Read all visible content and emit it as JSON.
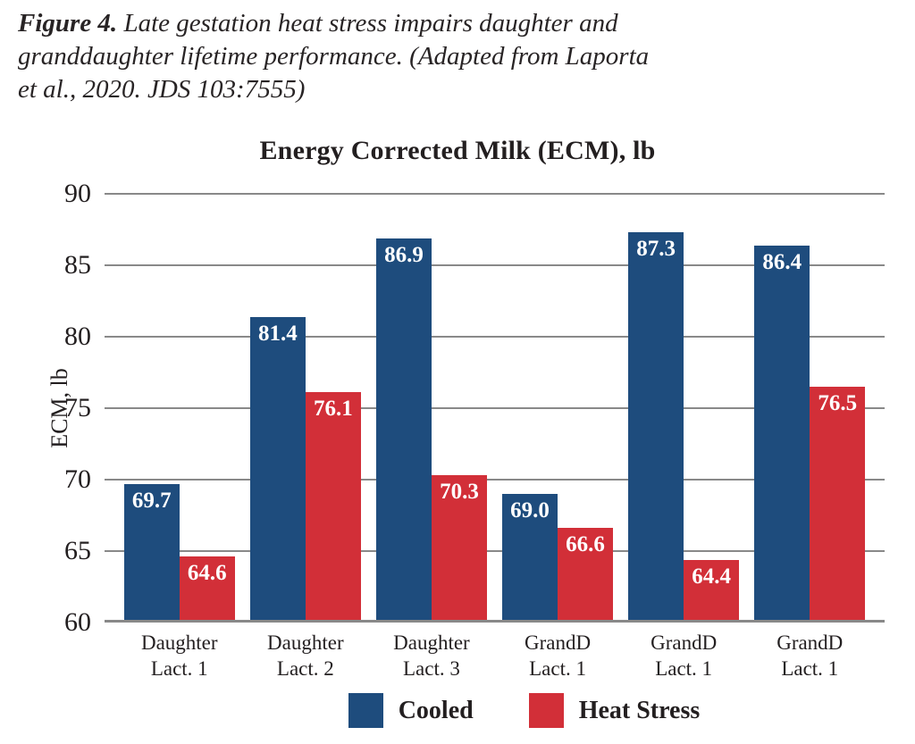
{
  "caption": {
    "label": "Figure 4.",
    "lines": [
      "Late gestation heat stress impairs daughter and",
      "granddaughter lifetime performance. (Adapted from Laporta",
      "et al., 2020. JDS 103:7555)"
    ]
  },
  "chart_data": {
    "type": "bar",
    "title": "Energy Corrected Milk (ECM), lb",
    "ylabel": "ECM, lb",
    "xlabel": "",
    "ylim": [
      60,
      90
    ],
    "yticks": [
      90,
      85,
      80,
      75,
      70,
      65,
      60
    ],
    "grid": true,
    "legend_position": "bottom",
    "value_label_decimals": 1,
    "categories": [
      {
        "line1": "Daughter",
        "line2": "Lact. 1"
      },
      {
        "line1": "Daughter",
        "line2": "Lact. 2"
      },
      {
        "line1": "Daughter",
        "line2": "Lact. 3"
      },
      {
        "line1": "GrandD",
        "line2": "Lact. 1"
      },
      {
        "line1": "GrandD",
        "line2": "Lact. 1"
      },
      {
        "line1": "GrandD",
        "line2": "Lact. 1"
      }
    ],
    "series": [
      {
        "name": "Cooled",
        "color": "#1e4c7d",
        "values": [
          69.7,
          81.4,
          86.9,
          69.0,
          87.3,
          86.4
        ]
      },
      {
        "name": "Heat Stress",
        "color": "#d22f38",
        "values": [
          64.6,
          76.1,
          70.3,
          66.6,
          64.4,
          76.5
        ]
      }
    ]
  },
  "colors": {
    "grid": "#898989",
    "text": "#231f20",
    "bar_value_label": "#ffffff",
    "cooled_blue": "#1e4c7d",
    "heat_stress_red": "#d22f38"
  }
}
